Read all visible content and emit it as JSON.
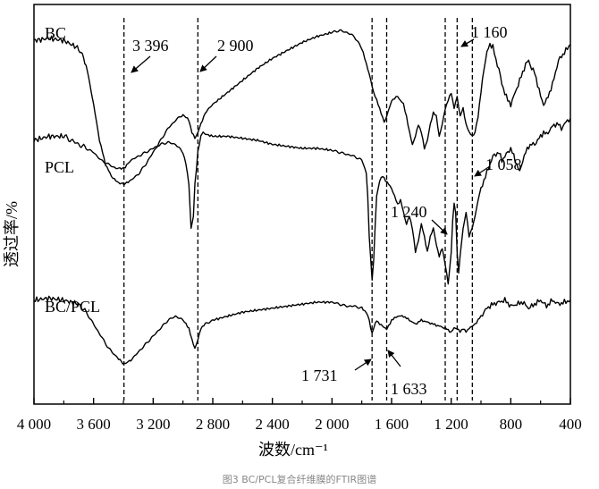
{
  "caption": "图3 BC/PCL复合纤维膜的FTIR图谱",
  "chart_data": {
    "type": "line",
    "title": "",
    "xlabel": "波数/cm⁻¹",
    "ylabel": "透过率/%",
    "xlim": [
      4000,
      400
    ],
    "x_reversed": true,
    "xticks": [
      4000,
      3600,
      3200,
      2800,
      2400,
      2000,
      1600,
      1200,
      800,
      400
    ],
    "xtick_labels": [
      "4 000",
      "3 600",
      "3 200",
      "2 800",
      "2 400",
      "2 000",
      "1 600",
      "1 200",
      "800",
      "400"
    ],
    "ylim": [
      0,
      100
    ],
    "grid": false,
    "series": [
      {
        "name": "BC",
        "x": [
          4000,
          3900,
          3800,
          3700,
          3650,
          3600,
          3560,
          3520,
          3480,
          3440,
          3396,
          3350,
          3300,
          3250,
          3200,
          3150,
          3100,
          3050,
          3000,
          2960,
          2940,
          2920,
          2900,
          2880,
          2850,
          2800,
          2700,
          2600,
          2500,
          2400,
          2300,
          2200,
          2100,
          2000,
          1950,
          1900,
          1850,
          1800,
          1760,
          1720,
          1680,
          1650,
          1633,
          1600,
          1560,
          1520,
          1500,
          1480,
          1460,
          1440,
          1420,
          1400,
          1380,
          1360,
          1340,
          1320,
          1300,
          1280,
          1260,
          1240,
          1220,
          1200,
          1180,
          1160,
          1140,
          1120,
          1100,
          1080,
          1058,
          1040,
          1020,
          1000,
          980,
          960,
          940,
          920,
          900,
          880,
          860,
          840,
          820,
          800,
          780,
          760,
          740,
          720,
          700,
          680,
          660,
          640,
          620,
          600,
          580,
          560,
          540,
          520,
          500,
          480,
          460,
          440,
          420,
          400
        ],
        "values": [
          91,
          91.5,
          91,
          89,
          85,
          75,
          66,
          60,
          57,
          55.5,
          55,
          56,
          57.5,
          60,
          63,
          66,
          69,
          71,
          72.5,
          71,
          68,
          66.5,
          68,
          70,
          73,
          75,
          78,
          81,
          84,
          86.5,
          88.5,
          90.5,
          92,
          93,
          93.5,
          93,
          92,
          89,
          84,
          78,
          74,
          70.5,
          72,
          76,
          77,
          75,
          72,
          68,
          65,
          67,
          70,
          68,
          64,
          66,
          70,
          73,
          72,
          67,
          70,
          74,
          76,
          78,
          74,
          77,
          72,
          74,
          70,
          68,
          67,
          68,
          72,
          78,
          84,
          88,
          90,
          89.5,
          86,
          84,
          80,
          78,
          76,
          75,
          77,
          79,
          81,
          83,
          85,
          86,
          84,
          83,
          80,
          77,
          75,
          76,
          78,
          80,
          83,
          86,
          87,
          88,
          89,
          90
        ]
      },
      {
        "name": "PCL",
        "x": [
          4000,
          3900,
          3800,
          3750,
          3700,
          3650,
          3600,
          3550,
          3500,
          3450,
          3396,
          3350,
          3300,
          3250,
          3200,
          3150,
          3100,
          3050,
          3000,
          2980,
          2960,
          2946,
          2930,
          2920,
          2900,
          2880,
          2865,
          2840,
          2800,
          2700,
          2600,
          2500,
          2400,
          2300,
          2200,
          2100,
          2000,
          1950,
          1900,
          1850,
          1800,
          1770,
          1760,
          1750,
          1740,
          1731,
          1720,
          1710,
          1700,
          1680,
          1660,
          1640,
          1620,
          1600,
          1580,
          1560,
          1540,
          1520,
          1500,
          1480,
          1460,
          1440,
          1420,
          1400,
          1380,
          1360,
          1340,
          1320,
          1300,
          1280,
          1260,
          1240,
          1220,
          1200,
          1190,
          1180,
          1170,
          1160,
          1150,
          1140,
          1120,
          1100,
          1080,
          1058,
          1040,
          1020,
          1000,
          980,
          960,
          940,
          920,
          900,
          880,
          860,
          840,
          820,
          800,
          780,
          760,
          740,
          720,
          700,
          680,
          660,
          640,
          620,
          600,
          580,
          560,
          540,
          520,
          500,
          480,
          460,
          440,
          420,
          400
        ],
        "values": [
          66,
          67,
          67,
          66,
          65,
          64,
          63,
          61,
          60,
          59,
          59,
          61,
          62,
          63,
          64,
          65,
          65.5,
          65,
          63,
          60,
          55,
          44,
          47,
          55,
          63,
          67,
          68,
          67.5,
          67,
          67,
          66.5,
          66,
          65,
          64.5,
          64,
          64,
          63.5,
          63,
          62.5,
          62,
          61,
          58,
          52,
          42,
          36,
          31,
          36,
          45,
          52,
          56,
          57,
          56,
          55,
          54,
          52,
          50,
          51,
          48,
          45,
          47,
          44,
          38,
          41,
          45,
          42,
          38,
          42,
          44,
          40,
          37,
          39,
          35,
          30,
          38,
          46,
          50,
          48,
          38,
          33,
          37,
          44,
          48,
          42,
          44,
          47,
          51,
          54,
          56,
          58,
          60,
          62,
          62.5,
          63,
          61,
          62,
          63,
          64,
          62,
          60,
          58,
          61,
          63,
          64.5,
          65,
          65,
          66,
          67,
          68,
          67.5,
          68.5,
          69.5,
          70,
          70,
          69,
          70,
          71,
          71.5
        ]
      },
      {
        "name": "BC/PCL",
        "x": [
          4000,
          3900,
          3800,
          3700,
          3650,
          3600,
          3550,
          3500,
          3450,
          3396,
          3350,
          3300,
          3250,
          3200,
          3150,
          3100,
          3050,
          3000,
          2960,
          2940,
          2920,
          2900,
          2880,
          2850,
          2800,
          2700,
          2600,
          2500,
          2400,
          2300,
          2200,
          2100,
          2000,
          1950,
          1900,
          1850,
          1800,
          1770,
          1750,
          1740,
          1731,
          1720,
          1700,
          1680,
          1660,
          1640,
          1633,
          1620,
          1600,
          1560,
          1520,
          1480,
          1440,
          1400,
          1360,
          1320,
          1280,
          1240,
          1200,
          1180,
          1160,
          1140,
          1120,
          1100,
          1080,
          1058,
          1040,
          1020,
          1000,
          960,
          920,
          880,
          840,
          800,
          760,
          720,
          680,
          640,
          600,
          560,
          520,
          480,
          440,
          400
        ],
        "values": [
          26,
          26.5,
          26,
          25,
          23,
          20,
          17,
          14,
          12,
          10,
          11,
          13,
          15,
          17,
          19,
          21,
          22,
          21,
          19,
          16,
          14,
          16,
          19,
          20,
          21,
          22,
          23,
          23.5,
          24,
          24.5,
          25,
          25.5,
          25.5,
          25,
          24.5,
          24.5,
          24,
          23,
          21,
          19,
          17.5,
          19,
          21,
          20,
          19.5,
          19,
          18.5,
          19.5,
          21,
          22,
          22,
          21,
          20,
          21,
          20.5,
          20,
          19.5,
          19,
          18,
          19,
          19,
          18,
          19,
          18,
          19,
          19.5,
          20,
          21,
          22,
          24,
          25,
          25.5,
          26,
          24.5,
          25,
          25.5,
          24,
          25,
          26,
          24.5,
          26,
          25,
          25.5,
          26
        ]
      }
    ],
    "annotations": [
      {
        "label": "BC",
        "kind": "series"
      },
      {
        "label": "PCL",
        "kind": "series"
      },
      {
        "label": "BC/PCL",
        "kind": "series"
      },
      {
        "label": "3 396",
        "x": 3396,
        "kind": "peak"
      },
      {
        "label": "2 900",
        "x": 2900,
        "kind": "peak"
      },
      {
        "label": "1 160",
        "x": 1160,
        "kind": "peak"
      },
      {
        "label": "1 058",
        "x": 1058,
        "kind": "peak"
      },
      {
        "label": "1 240",
        "x": 1240,
        "kind": "peak"
      },
      {
        "label": "1 731",
        "x": 1731,
        "kind": "peak"
      },
      {
        "label": "1 633",
        "x": 1633,
        "kind": "peak"
      }
    ],
    "reference_lines_x": [
      3396,
      2900,
      1731,
      1633,
      1240,
      1160,
      1058
    ]
  }
}
